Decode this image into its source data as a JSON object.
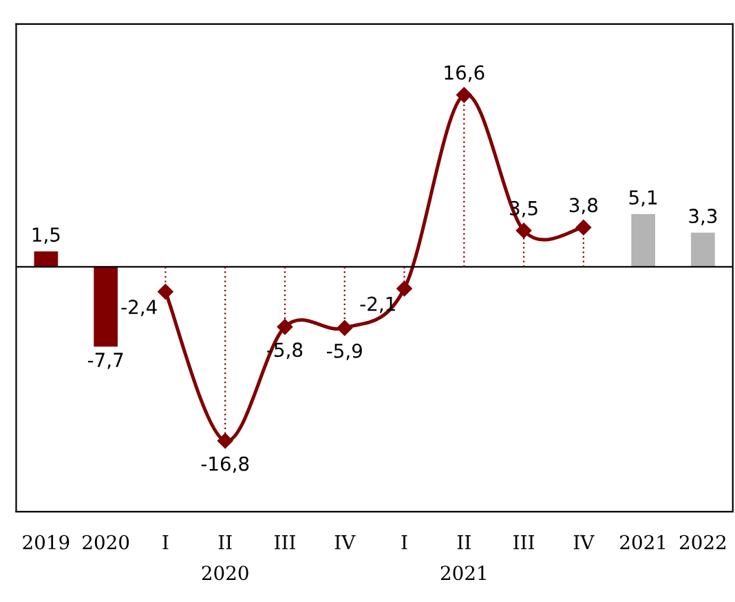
{
  "chart_data": {
    "type": "bar",
    "categories": [
      "2019",
      "2020",
      "I",
      "II",
      "III",
      "IV",
      "I",
      "II",
      "III",
      "IV",
      "2021",
      "2022"
    ],
    "series": [
      {
        "values": [
          1.5,
          -7.7,
          null,
          null,
          null,
          null,
          null,
          null,
          null,
          null,
          5.1,
          3.3
        ],
        "colors": [
          "#800000",
          "#800000",
          null,
          null,
          null,
          null,
          null,
          null,
          null,
          null,
          "#b4b4b4",
          "#b4b4b4"
        ],
        "value_labels": [
          "1,5",
          "-7,7",
          null,
          null,
          null,
          null,
          null,
          null,
          null,
          null,
          "5,1",
          "3,3"
        ]
      },
      {
        "type": "line",
        "color": "#800000",
        "marker": "diamond",
        "values": [
          null,
          null,
          -2.4,
          -16.8,
          -5.8,
          -5.9,
          -2.1,
          16.6,
          3.5,
          3.8,
          null,
          null
        ],
        "value_labels": [
          null,
          null,
          "-2,4",
          "-16,8",
          "-5,8",
          "-5,9",
          "-2,1",
          "16,6",
          "3,5",
          "3,8",
          null,
          null
        ]
      }
    ],
    "annotations": [
      "2020",
      "2021"
    ]
  }
}
